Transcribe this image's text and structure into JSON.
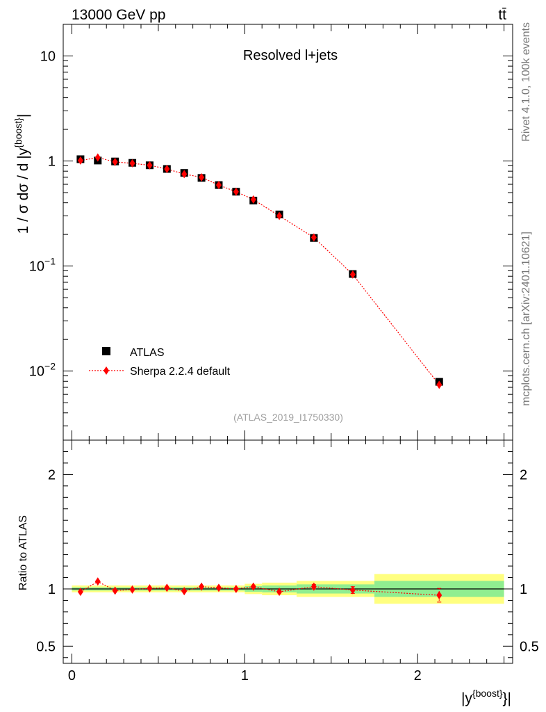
{
  "header": {
    "left": "13000 GeV pp",
    "right": "tt̄"
  },
  "side_labels": {
    "rivet": "Rivet 4.1.0,  100k events",
    "mcplots": "mcplots.cern.ch [arXiv:2401.10621]"
  },
  "chart_data": [
    {
      "type": "scatter",
      "title": "Resolved l+jets",
      "ylabel": "1 / σ dσ / d |y^{boost}|",
      "xlabel": "|y^{boost}|",
      "yscale": "log",
      "ylim": [
        0.0022,
        20
      ],
      "xlim": [
        -0.05,
        2.55
      ],
      "y_ticks": [
        {
          "value": 0.01,
          "label": "10",
          "exp": "−2"
        },
        {
          "value": 0.1,
          "label": "10",
          "exp": "−1"
        },
        {
          "value": 1,
          "label": "1"
        },
        {
          "value": 10,
          "label": "10"
        }
      ],
      "watermark": "(ATLAS_2019_I1750330)",
      "legend": {
        "placement": "bottom-left",
        "entries": [
          "ATLAS",
          "Sherpa 2.2.4 default"
        ]
      },
      "series": [
        {
          "name": "ATLAS",
          "color": "#000000",
          "x": [
            0.05,
            0.15,
            0.25,
            0.35,
            0.45,
            0.55,
            0.65,
            0.75,
            0.85,
            0.95,
            1.05,
            1.2,
            1.4,
            1.625,
            2.125
          ],
          "values": [
            1.04,
            1.01,
            0.99,
            0.96,
            0.91,
            0.84,
            0.77,
            0.69,
            0.59,
            0.51,
            0.42,
            0.31,
            0.185,
            0.084,
            0.0079
          ]
        },
        {
          "name": "Sherpa 2.2.4 default",
          "color": "#ff0000",
          "x": [
            0.05,
            0.15,
            0.25,
            0.35,
            0.45,
            0.55,
            0.65,
            0.75,
            0.85,
            0.95,
            1.05,
            1.2,
            1.4,
            1.625,
            2.125
          ],
          "values": [
            1.01,
            1.08,
            0.98,
            0.95,
            0.91,
            0.84,
            0.75,
            0.7,
            0.59,
            0.51,
            0.43,
            0.3,
            0.187,
            0.083,
            0.0074
          ]
        }
      ]
    },
    {
      "type": "scatter",
      "ylabel": "Ratio to ATLAS",
      "xlabel": "|y^{boost}|",
      "ylim": [
        0.35,
        2.3
      ],
      "xlim": [
        -0.05,
        2.55
      ],
      "y_ticks": [
        0.5,
        1,
        2
      ],
      "y_tick_labels": [
        "0.5",
        "1",
        "2"
      ],
      "x_ticks": [
        0,
        1,
        2
      ],
      "x_tick_labels": [
        "0",
        "1",
        "2"
      ],
      "uncertainty_bands": {
        "edges": [
          0,
          1.0,
          1.1,
          1.3,
          1.75,
          2.5
        ],
        "inner": [
          0.014,
          0.025,
          0.03,
          0.04,
          0.07
        ],
        "outer": [
          0.03,
          0.045,
          0.055,
          0.07,
          0.13
        ],
        "inner_color": "#90ee90",
        "outer_color": "#ffff80"
      },
      "series": [
        {
          "name": "Sherpa 2.2.4 default",
          "color": "#ff0000",
          "x": [
            0.05,
            0.15,
            0.25,
            0.35,
            0.45,
            0.55,
            0.65,
            0.75,
            0.85,
            0.95,
            1.05,
            1.2,
            1.4,
            1.625,
            2.125
          ],
          "values": [
            0.975,
            1.065,
            0.985,
            0.995,
            1.005,
            1.01,
            0.98,
            1.02,
            1.01,
            1.0,
            1.02,
            0.975,
            1.02,
            0.99,
            0.945
          ],
          "errors": [
            0.005,
            0.005,
            0.005,
            0.005,
            0.005,
            0.005,
            0.005,
            0.005,
            0.005,
            0.005,
            0.01,
            0.01,
            0.02,
            0.03,
            0.06
          ]
        }
      ]
    }
  ]
}
